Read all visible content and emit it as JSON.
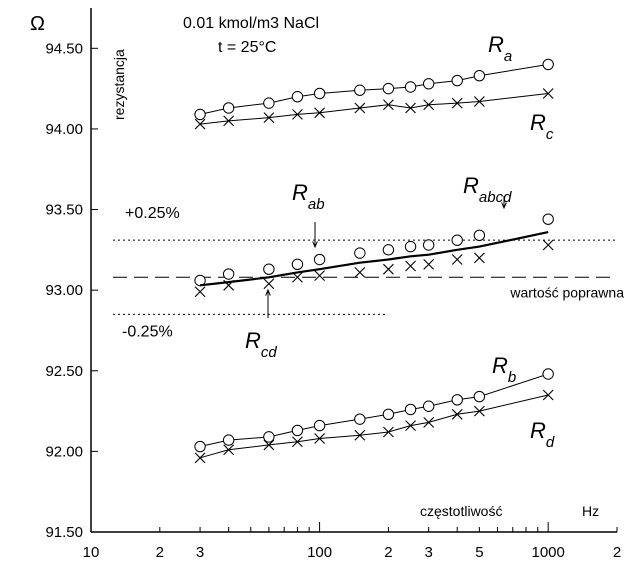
{
  "chart_data": {
    "type": "line",
    "title": "0.01 kmol/m3 NaCl",
    "subtitle": "t = 25°C",
    "ylabel": "rezystancja",
    "yunit": "Ω",
    "xlabel": "częstotliwość",
    "xunit": "Hz",
    "xscale": "log",
    "xlim": [
      10,
      2000
    ],
    "ylim": [
      91.5,
      94.75
    ],
    "yticks": [
      "91.50",
      "92.00",
      "92.50",
      "93.00",
      "93.50",
      "94.00",
      "94.50"
    ],
    "xticks": [
      "10",
      "2",
      "3",
      "100",
      "2",
      "3",
      "5",
      "1000",
      "2"
    ],
    "reference_lines": [
      {
        "label": "+0.25%",
        "y": 93.31,
        "style": "dotted"
      },
      {
        "label": "wartość poprawna",
        "y": 93.08,
        "style": "dashed"
      },
      {
        "label": "-0.25%",
        "y": 92.85,
        "style": "dotted"
      }
    ],
    "series": [
      {
        "name": "R",
        "sub": "a",
        "marker": "circle",
        "x": [
          30,
          40,
          60,
          80,
          100,
          150,
          200,
          250,
          300,
          400,
          500,
          1000
        ],
        "y": [
          94.09,
          94.13,
          94.16,
          94.2,
          94.22,
          94.24,
          94.25,
          94.26,
          94.28,
          94.3,
          94.33,
          94.4
        ]
      },
      {
        "name": "R",
        "sub": "c",
        "marker": "cross",
        "x": [
          30,
          40,
          60,
          80,
          100,
          150,
          200,
          250,
          300,
          400,
          500,
          1000
        ],
        "y": [
          94.03,
          94.05,
          94.07,
          94.09,
          94.1,
          94.13,
          94.15,
          94.13,
          94.15,
          94.16,
          94.17,
          94.22
        ]
      },
      {
        "name": "R",
        "sub": "ab",
        "marker": "circle",
        "x": [
          30,
          40,
          60,
          80,
          100,
          150,
          200,
          250,
          300,
          400,
          500,
          1000
        ],
        "y": [
          93.06,
          93.1,
          93.13,
          93.16,
          93.19,
          93.23,
          93.25,
          93.27,
          93.28,
          93.31,
          93.34,
          93.44
        ]
      },
      {
        "name": "R",
        "sub": "cd",
        "marker": "cross",
        "x": [
          30,
          40,
          60,
          80,
          100,
          150,
          200,
          250,
          300,
          400,
          500,
          1000
        ],
        "y": [
          92.99,
          93.03,
          93.04,
          93.08,
          93.09,
          93.11,
          93.13,
          93.15,
          93.16,
          93.19,
          93.2,
          93.28
        ]
      },
      {
        "name": "R",
        "sub": "abcd",
        "marker": "none",
        "x": [
          30,
          40,
          60,
          80,
          100,
          150,
          200,
          250,
          300,
          400,
          500,
          1000
        ],
        "y": [
          93.03,
          93.05,
          93.08,
          93.11,
          93.13,
          93.17,
          93.19,
          93.21,
          93.22,
          93.25,
          93.27,
          93.36
        ]
      },
      {
        "name": "R",
        "sub": "b",
        "marker": "circle",
        "x": [
          30,
          40,
          60,
          80,
          100,
          150,
          200,
          250,
          300,
          400,
          500,
          1000
        ],
        "y": [
          92.03,
          92.07,
          92.09,
          92.13,
          92.16,
          92.2,
          92.23,
          92.26,
          92.28,
          92.32,
          92.34,
          92.48
        ]
      },
      {
        "name": "R",
        "sub": "d",
        "marker": "cross",
        "x": [
          30,
          40,
          60,
          80,
          100,
          150,
          200,
          250,
          300,
          400,
          500,
          1000
        ],
        "y": [
          91.96,
          92.01,
          92.04,
          92.06,
          92.08,
          92.1,
          92.12,
          92.16,
          92.18,
          92.23,
          92.25,
          92.35
        ]
      }
    ]
  }
}
